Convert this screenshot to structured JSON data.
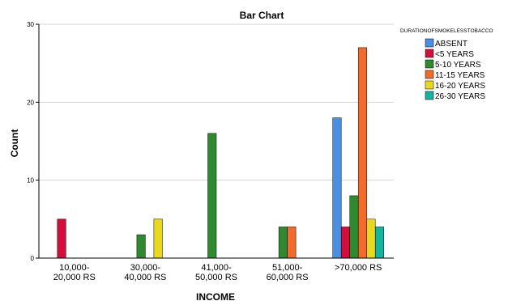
{
  "chart_data": {
    "type": "bar",
    "title": "Bar Chart",
    "xlabel": "INCOME",
    "ylabel": "Count",
    "ylim": [
      0,
      30
    ],
    "yticks": [
      0,
      10,
      20,
      30
    ],
    "grid": true,
    "legend_position": "top-right",
    "legend_title": "DURATIONOFSMOKELESSTOBACCO",
    "categories": [
      [
        "10,000-",
        "20,000 RS"
      ],
      [
        "30,000-",
        "40,000 RS"
      ],
      [
        "41,000-",
        "50,000 RS"
      ],
      [
        "51,000-",
        "60,000 RS"
      ],
      [
        ">70,000 RS"
      ]
    ],
    "series": [
      {
        "name": "ABSENT",
        "color": "#4a90e2",
        "values": [
          0,
          0,
          0,
          0,
          18
        ]
      },
      {
        "name": "<5 YEARS",
        "color": "#d40e3a",
        "values": [
          5,
          0,
          0,
          0,
          4
        ]
      },
      {
        "name": "5-10 YEARS",
        "color": "#2f8a2f",
        "values": [
          0,
          3,
          16,
          4,
          8
        ]
      },
      {
        "name": "11-15 YEARS",
        "color": "#f26b2d",
        "values": [
          0,
          0,
          0,
          4,
          27
        ]
      },
      {
        "name": "16-20 YEARS",
        "color": "#e8d81e",
        "values": [
          0,
          5,
          0,
          0,
          5
        ]
      },
      {
        "name": "26-30 YEARS",
        "color": "#16b3a0",
        "values": [
          0,
          0,
          0,
          0,
          4
        ]
      }
    ]
  }
}
